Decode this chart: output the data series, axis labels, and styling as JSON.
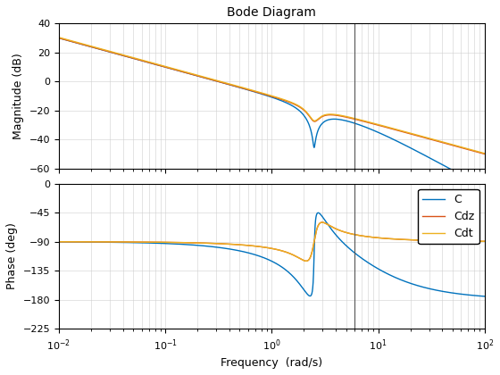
{
  "title": "Bode Diagram",
  "xlabel": "Frequency  (rad/s)",
  "ylabel_mag": "Magnitude (dB)",
  "ylabel_phase": "Phase (deg)",
  "freq_range": [
    0.01,
    100
  ],
  "mag_ylim": [
    -60,
    40
  ],
  "phase_ylim": [
    -225,
    0
  ],
  "vline_freq": 6.0,
  "legend_labels": [
    "C",
    "Cdz",
    "Cdt"
  ],
  "colors": [
    "#0072BD",
    "#D95319",
    "#EDB120"
  ],
  "mag_yticks": [
    -60,
    -40,
    -20,
    0,
    20,
    40
  ],
  "phase_yticks": [
    -225,
    -180,
    -135,
    -90,
    -45,
    0
  ],
  "title_fontsize": 10,
  "label_fontsize": 9,
  "tick_fontsize": 8
}
